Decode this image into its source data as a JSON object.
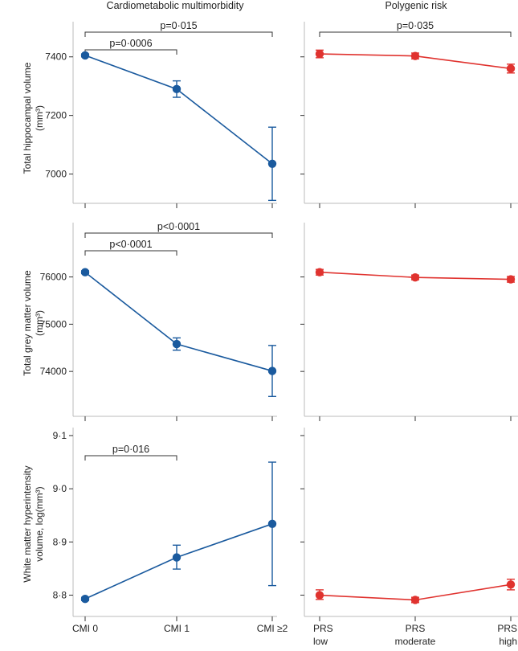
{
  "columns": {
    "left_title": "Cardiometabolic multimorbidity",
    "right_title": "Polygenic risk"
  },
  "colors": {
    "cmi": "#1a5a9e",
    "prs": "#e0332f",
    "axis": "#333333",
    "frame": "#bbbbbb"
  },
  "ylabels": {
    "hippo_line1": "Total hippocampal volume",
    "hippo_line2": "(mm³)",
    "grey_line1": "Total grey matter volume",
    "grey_line2": "(mm³)",
    "wmh_line1": "White matter hyperintensity",
    "wmh_line2": "volume, log(mm³)"
  },
  "chart_data": [
    {
      "type": "line",
      "panel": "hippocampal-cmi",
      "categories": [
        "CMI 0",
        "CMI 1",
        "CMI ≥2"
      ],
      "values": [
        7405,
        7290,
        7035
      ],
      "ci_low": [
        7400,
        7262,
        6910
      ],
      "ci_high": [
        7410,
        7318,
        7160
      ],
      "ylim": [
        6900,
        7520
      ],
      "yticks": [
        7000,
        7200,
        7400
      ],
      "yticklabels": [
        "7000",
        "7200",
        "7400"
      ],
      "annotations": [
        {
          "text": "p=0·0006",
          "from": 0,
          "to": 1,
          "level": 1
        },
        {
          "text": "p=0·015",
          "from": 0,
          "to": 2,
          "level": 2
        }
      ]
    },
    {
      "type": "line",
      "panel": "hippocampal-prs",
      "categories": [
        "PRS low",
        "PRS moderate",
        "PRS high"
      ],
      "values": [
        7410,
        7403,
        7360
      ],
      "ci_low": [
        7397,
        7393,
        7345
      ],
      "ci_high": [
        7423,
        7413,
        7375
      ],
      "ylim": [
        6900,
        7520
      ],
      "yticks": [
        7000,
        7200,
        7400
      ],
      "annotations": [
        {
          "text": "p=0·035",
          "from": 0,
          "to": 2,
          "level": 2
        }
      ]
    },
    {
      "type": "line",
      "panel": "grey-cmi",
      "categories": [
        "CMI 0",
        "CMI 1",
        "CMI ≥2"
      ],
      "values": [
        76100,
        74580,
        74010
      ],
      "ci_low": [
        76070,
        74450,
        73470
      ],
      "ci_high": [
        76130,
        74710,
        74550
      ],
      "ylim": [
        73050,
        77150
      ],
      "yticks": [
        74000,
        75000,
        76000
      ],
      "yticklabels": [
        "74000",
        "75000",
        "76000"
      ],
      "annotations": [
        {
          "text": "p<0·0001",
          "from": 0,
          "to": 1,
          "level": 1
        },
        {
          "text": "p<0·0001",
          "from": 0,
          "to": 2,
          "level": 2
        }
      ]
    },
    {
      "type": "line",
      "panel": "grey-prs",
      "categories": [
        "PRS low",
        "PRS moderate",
        "PRS high"
      ],
      "values": [
        76100,
        75990,
        75950
      ],
      "ci_low": [
        76040,
        75940,
        75890
      ],
      "ci_high": [
        76160,
        76040,
        76010
      ],
      "ylim": [
        73050,
        77150
      ],
      "yticks": [
        74000,
        75000,
        76000
      ],
      "annotations": []
    },
    {
      "type": "line",
      "panel": "wmh-cmi",
      "categories": [
        "CMI 0",
        "CMI 1",
        "CMI ≥2"
      ],
      "values": [
        8.793,
        8.871,
        8.934
      ],
      "ci_low": [
        8.79,
        8.849,
        8.818
      ],
      "ci_high": [
        8.796,
        8.894,
        9.05
      ],
      "ylim": [
        8.76,
        9.115
      ],
      "yticks": [
        8.8,
        8.9,
        9.0,
        9.1
      ],
      "yticklabels": [
        "8·8",
        "8·9",
        "9·0",
        "9·1"
      ],
      "annotations": [
        {
          "text": "p=0·016",
          "from": 0,
          "to": 1,
          "level": 1
        }
      ]
    },
    {
      "type": "line",
      "panel": "wmh-prs",
      "categories": [
        "PRS low",
        "PRS moderate",
        "PRS high"
      ],
      "values": [
        8.8,
        8.791,
        8.82
      ],
      "ci_low": [
        8.792,
        8.786,
        8.81
      ],
      "ci_high": [
        8.81,
        8.796,
        8.83
      ],
      "ylim": [
        8.76,
        9.115
      ],
      "yticks": [
        8.8,
        8.9,
        9.0,
        9.1
      ],
      "annotations": []
    }
  ],
  "xlabels": {
    "left": [
      "CMI 0",
      "CMI 1",
      "CMI ≥2"
    ],
    "right_line1": [
      "PRS",
      "PRS",
      "PRS"
    ],
    "right_line2": [
      "low",
      "moderate",
      "high"
    ]
  }
}
